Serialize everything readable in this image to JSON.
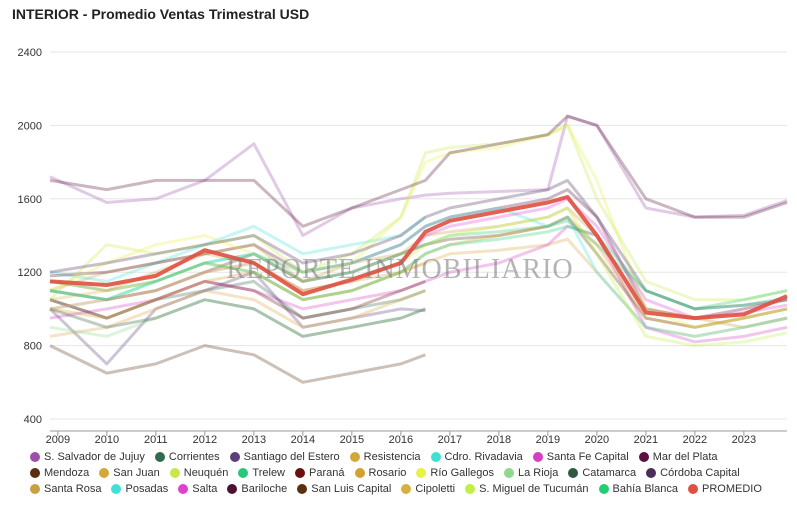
{
  "chart_data": {
    "type": "line",
    "title": "INTERIOR - Promedio Ventas Trimestral USD",
    "watermark": "REPORTE INMOBILIARIO",
    "x": [
      2008.84,
      2010,
      2011,
      2012,
      2013,
      2014,
      2015,
      2016,
      2016.5,
      2017,
      2018,
      2019,
      2019.4,
      2020,
      2021,
      2022,
      2023,
      2023.88
    ],
    "xlim": [
      2008.84,
      2023.88
    ],
    "xticks": [
      2009,
      2010,
      2011,
      2012,
      2013,
      2014,
      2015,
      2016,
      2017,
      2018,
      2019,
      2020,
      2021,
      2022,
      2023
    ],
    "ylim": [
      400,
      2400
    ],
    "yticks": [
      400,
      800,
      1200,
      1600,
      2000,
      2400
    ],
    "grid": true,
    "series": [
      {
        "name": "S. Salvador de Jujuy",
        "color": "#9b4fa8",
        "values": [
          1720,
          1580,
          1600,
          1700,
          1900,
          1400,
          1550,
          1600,
          1620,
          1630,
          1640,
          1650,
          2050,
          2000,
          1550,
          1500,
          1510,
          1590
        ]
      },
      {
        "name": "Corrientes",
        "color": "#2e6b4f",
        "values": [
          1050,
          950,
          1050,
          1100,
          1150,
          950,
          1000,
          1050,
          1100,
          null,
          null,
          null,
          null,
          null,
          null,
          null,
          null,
          null
        ]
      },
      {
        "name": "Santiago del Estero",
        "color": "#5a3f7a",
        "values": [
          1000,
          700,
          1000,
          1100,
          1200,
          900,
          950,
          1000,
          990,
          null,
          null,
          null,
          null,
          null,
          null,
          null,
          null,
          null
        ]
      },
      {
        "name": "Resistencia",
        "color": "#d4a73a",
        "values": [
          1100,
          1200,
          1250,
          1300,
          1250,
          1100,
          1150,
          1200,
          1250,
          1300,
          1320,
          1350,
          1380,
          1200,
          900,
          850,
          900,
          950
        ]
      },
      {
        "name": "Cdro. Rivadavia",
        "color": "#40e0d0",
        "values": [
          1200,
          1150,
          1250,
          1350,
          1450,
          1300,
          1350,
          1400,
          1500,
          null,
          null,
          null,
          null,
          null,
          null,
          null,
          null,
          null
        ]
      },
      {
        "name": "Santa Fe Capital",
        "color": "#d63fc1",
        "values": [
          950,
          1000,
          1050,
          1150,
          1100,
          1000,
          1050,
          1100,
          1150,
          1200,
          1250,
          1350,
          1450,
          1400,
          900,
          820,
          850,
          900
        ]
      },
      {
        "name": "Mar del Plata",
        "color": "#5a1040",
        "values": [
          1180,
          1200,
          1250,
          1300,
          1350,
          1200,
          1250,
          1350,
          1450,
          1500,
          1550,
          1600,
          1650,
          1500,
          1000,
          950,
          1000,
          1050
        ]
      },
      {
        "name": "Mendoza",
        "color": "#5a2e10",
        "values": [
          1100,
          1050,
          1100,
          1200,
          1300,
          1150,
          1200,
          1300,
          1350,
          1380,
          1400,
          1450,
          1500,
          1300,
          950,
          900,
          950,
          1000
        ]
      },
      {
        "name": "San Juan",
        "color": "#d4a73a",
        "values": [
          850,
          900,
          1000,
          1100,
          1050,
          900,
          950,
          1050,
          1100,
          null,
          null,
          null,
          null,
          null,
          null,
          null,
          null,
          null
        ]
      },
      {
        "name": "Neuquén",
        "color": "#c8e84a",
        "values": [
          1050,
          1350,
          1300,
          1350,
          1400,
          1200,
          1300,
          1500,
          1850,
          1880,
          1900,
          1950,
          2000,
          1600,
          1150,
          1050,
          1050,
          1100
        ]
      },
      {
        "name": "Trelew",
        "color": "#28c878",
        "values": [
          1150,
          1100,
          1150,
          1250,
          1300,
          1150,
          1200,
          1300,
          1350,
          1400,
          1420,
          1450,
          1480,
          1350,
          1100,
          1000,
          1050,
          1100
        ]
      },
      {
        "name": "Paraná",
        "color": "#6a1010",
        "values": [
          1050,
          950,
          1050,
          1150,
          1100,
          950,
          1000,
          1100,
          1150,
          null,
          null,
          null,
          null,
          null,
          null,
          null,
          null,
          null
        ]
      },
      {
        "name": "Rosario",
        "color": "#d4a030",
        "values": [
          1000,
          950,
          1050,
          1150,
          1200,
          1050,
          1100,
          1200,
          1300,
          1350,
          1400,
          1450,
          1500,
          1350,
          950,
          900,
          950,
          1000
        ]
      },
      {
        "name": "Río Gallegos",
        "color": "#e8f04a",
        "values": [
          1100,
          1250,
          1350,
          1400,
          1300,
          1200,
          1250,
          1500,
          1800,
          1850,
          1880,
          1950,
          2000,
          1700,
          1000,
          900,
          950,
          1000
        ]
      },
      {
        "name": "La Rioja",
        "color": "#90d890",
        "values": [
          900,
          850,
          950,
          1050,
          1000,
          850,
          900,
          950,
          1000,
          null,
          null,
          null,
          null,
          null,
          null,
          null,
          null,
          null
        ]
      },
      {
        "name": "Catamarca",
        "color": "#2e5a40",
        "values": [
          1000,
          900,
          950,
          1050,
          1000,
          850,
          900,
          950,
          1000,
          null,
          null,
          null,
          null,
          null,
          null,
          null,
          null,
          null
        ]
      },
      {
        "name": "Córdoba Capital",
        "color": "#4a2e5a",
        "values": [
          1200,
          1250,
          1300,
          1350,
          1400,
          1250,
          1300,
          1400,
          1500,
          1550,
          1600,
          1650,
          1700,
          1500,
          1100,
          1000,
          1020,
          1050
        ]
      },
      {
        "name": "Santa Rosa",
        "color": "#c8a040",
        "values": [
          1150,
          1100,
          1200,
          1300,
          1350,
          1150,
          1250,
          1300,
          1400,
          1420,
          1450,
          1500,
          1550,
          1400,
          1000,
          950,
          900,
          950
        ]
      },
      {
        "name": "Posadas",
        "color": "#40e0d8",
        "values": [
          1100,
          1050,
          1150,
          1250,
          1300,
          1200,
          1250,
          1350,
          1450,
          1500,
          1550,
          1450,
          1500,
          1200,
          900,
          850,
          900,
          950
        ]
      },
      {
        "name": "Salta",
        "color": "#e040d0",
        "values": [
          1000,
          1050,
          1100,
          1200,
          1250,
          1100,
          1150,
          1250,
          1400,
          1450,
          1500,
          1550,
          1600,
          1450,
          1050,
          950,
          980,
          1020
        ]
      },
      {
        "name": "Bariloche",
        "color": "#501030",
        "values": [
          1700,
          1650,
          1700,
          1700,
          1700,
          1450,
          1550,
          1650,
          1700,
          1850,
          1900,
          1950,
          2050,
          2000,
          1600,
          1500,
          1500,
          1580
        ]
      },
      {
        "name": "San Luis Capital",
        "color": "#5a3010",
        "values": [
          800,
          650,
          700,
          800,
          750,
          600,
          650,
          700,
          750,
          null,
          null,
          null,
          null,
          null,
          null,
          null,
          null,
          null
        ]
      },
      {
        "name": "Cipoletti",
        "color": "#d8b040",
        "values": [
          1050,
          1100,
          1150,
          1250,
          1200,
          1050,
          1100,
          1200,
          1250,
          null,
          null,
          null,
          null,
          null,
          null,
          null,
          null,
          null
        ]
      },
      {
        "name": "S. Miguel de Tucumán",
        "color": "#c0f040",
        "values": [
          1000,
          1050,
          1100,
          1200,
          1250,
          1100,
          1150,
          1250,
          1350,
          1400,
          1450,
          1500,
          1550,
          1300,
          850,
          800,
          820,
          870
        ]
      },
      {
        "name": "Bahía Blanca",
        "color": "#20d070",
        "values": [
          1100,
          1050,
          1150,
          1250,
          1200,
          1050,
          1100,
          1200,
          1300,
          1350,
          1380,
          1420,
          1450,
          1400,
          1100,
          1000,
          1020,
          1060
        ]
      },
      {
        "name": "PROMEDIO",
        "color": "#e05040",
        "values": [
          1150,
          1130,
          1180,
          1320,
          1250,
          1080,
          1160,
          1250,
          1420,
          1480,
          1530,
          1580,
          1610,
          1400,
          980,
          950,
          970,
          1070
        ]
      }
    ]
  }
}
